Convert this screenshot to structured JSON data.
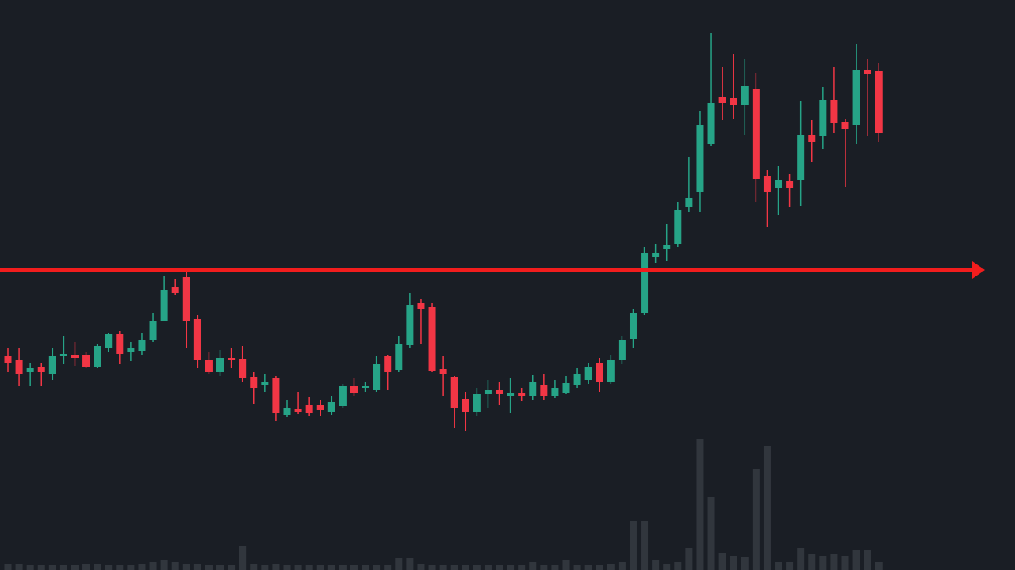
{
  "chart_data": {
    "type": "candlestick",
    "up_color": "#26a487",
    "down_color": "#f23645",
    "background": "#1a1e25",
    "ylim": [
      0,
      720
    ],
    "open": [
      270,
      265,
      250,
      257,
      248,
      270,
      272,
      272,
      257,
      280,
      298,
      275,
      277,
      290,
      315,
      357,
      370,
      317,
      265,
      250,
      268,
      267,
      244,
      234,
      242,
      196,
      203,
      208,
      208,
      200,
      207,
      232,
      230,
      228,
      270,
      253,
      284,
      337,
      332,
      254,
      244,
      216,
      200,
      222,
      228,
      220,
      224,
      220,
      234,
      220,
      224,
      234,
      240,
      262,
      238,
      265,
      292,
      325,
      395,
      405,
      412,
      458,
      477,
      538,
      598,
      596,
      588,
      608,
      498,
      482,
      491,
      492,
      550,
      548,
      594,
      566,
      562,
      632,
      630
    ],
    "high": [
      280,
      280,
      262,
      262,
      280,
      295,
      288,
      275,
      285,
      300,
      302,
      288,
      300,
      325,
      372,
      368,
      377,
      322,
      275,
      278,
      280,
      283,
      250,
      247,
      245,
      215,
      225,
      218,
      215,
      220,
      235,
      242,
      238,
      270,
      272,
      295,
      350,
      342,
      337,
      270,
      245,
      225,
      230,
      240,
      238,
      242,
      230,
      246,
      248,
      240,
      245,
      255,
      262,
      268,
      272,
      295,
      330,
      408,
      412,
      437,
      465,
      522,
      580,
      678,
      635,
      652,
      645,
      628,
      505,
      510,
      500,
      592,
      568,
      610,
      635,
      570,
      665,
      645,
      640
    ],
    "low": [
      250,
      232,
      232,
      232,
      240,
      260,
      258,
      255,
      255,
      275,
      260,
      264,
      272,
      288,
      315,
      347,
      280,
      255,
      248,
      245,
      255,
      238,
      210,
      225,
      188,
      193,
      197,
      194,
      195,
      196,
      205,
      220,
      225,
      225,
      227,
      250,
      280,
      285,
      250,
      220,
      180,
      175,
      195,
      205,
      208,
      198,
      214,
      215,
      215,
      217,
      222,
      230,
      235,
      225,
      235,
      260,
      280,
      322,
      388,
      390,
      408,
      452,
      452,
      535,
      568,
      570,
      550,
      465,
      433,
      448,
      458,
      460,
      515,
      532,
      552,
      484,
      538,
      548,
      540
    ],
    "close": [
      262,
      248,
      255,
      250,
      270,
      273,
      268,
      257,
      283,
      298,
      273,
      280,
      290,
      314,
      354,
      350,
      314,
      265,
      250,
      268,
      265,
      243,
      230,
      238,
      198,
      205,
      199,
      198,
      202,
      212,
      232,
      224,
      232,
      260,
      250,
      285,
      335,
      330,
      252,
      248,
      205,
      200,
      222,
      228,
      222,
      223,
      220,
      238,
      220,
      230,
      236,
      247,
      257,
      238,
      265,
      290,
      325,
      400,
      400,
      410,
      455,
      470,
      562,
      590,
      590,
      588,
      612,
      494,
      478,
      492,
      483,
      550,
      540,
      594,
      565,
      557,
      631,
      627,
      552
    ],
    "volume": [
      8,
      8,
      6,
      6,
      6,
      6,
      6,
      8,
      8,
      6,
      6,
      6,
      8,
      10,
      12,
      10,
      8,
      8,
      6,
      6,
      6,
      30,
      8,
      6,
      8,
      6,
      6,
      6,
      6,
      6,
      6,
      6,
      6,
      6,
      6,
      15,
      15,
      8,
      6,
      6,
      6,
      6,
      6,
      6,
      6,
      6,
      6,
      10,
      6,
      6,
      12,
      6,
      6,
      6,
      8,
      10,
      62,
      62,
      12,
      8,
      10,
      28,
      165,
      92,
      22,
      18,
      16,
      128,
      157,
      10,
      10,
      28,
      20,
      18,
      20,
      18,
      25,
      25,
      10
    ],
    "volume_lim": [
      0,
      200
    ],
    "volume_color": "rgba(130,140,150,0.22)",
    "resistance": 379,
    "resistance_color": "#f21d1d"
  }
}
